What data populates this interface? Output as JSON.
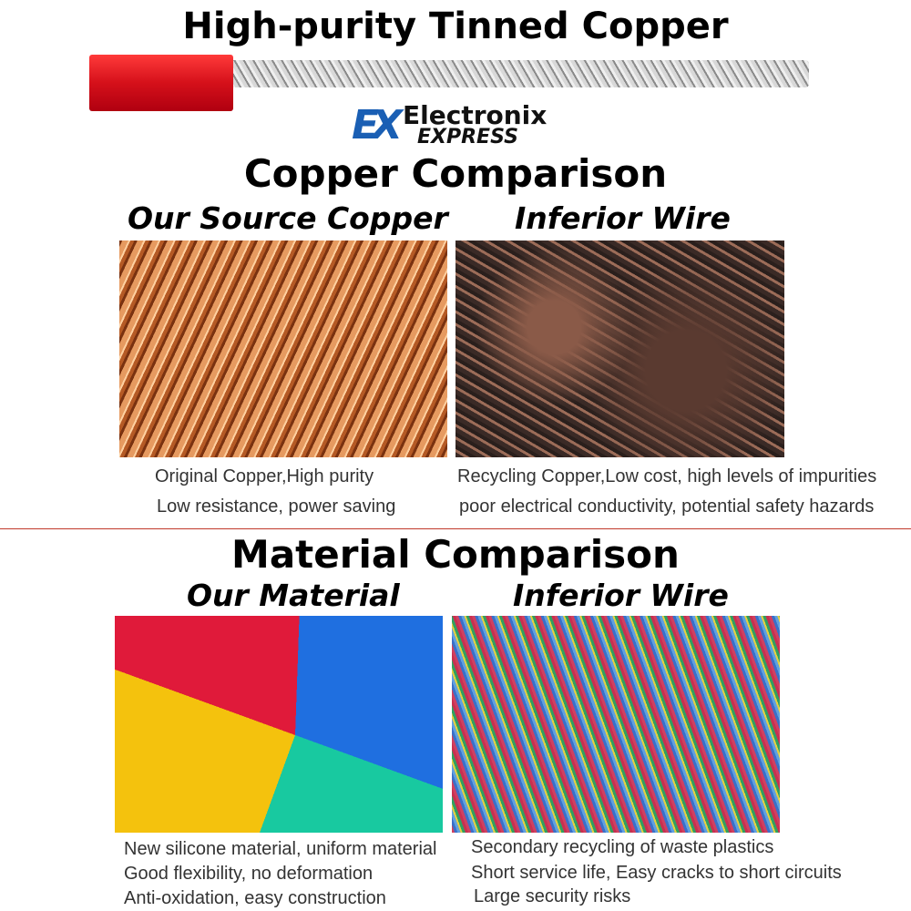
{
  "header": {
    "title": "High-purity Tinned Copper"
  },
  "logo": {
    "mark": "EX",
    "line1": "Electronix",
    "line2": "EXPRESS",
    "color": "#1a5fb4"
  },
  "copper": {
    "title": "Copper Comparison",
    "left_label": "Our Source Copper",
    "right_label": "Inferior Wire",
    "left_caption": [
      "Original Copper,High purity",
      "Low resistance, power saving"
    ],
    "right_caption": [
      "Recycling Copper,Low cost, high levels of impurities",
      "poor electrical conductivity, potential safety hazards"
    ]
  },
  "material": {
    "title": "Material Comparison",
    "left_label": "Our Material",
    "right_label": "Inferior Wire",
    "left_caption": [
      "New silicone material, uniform material",
      "Good flexibility, no deformation",
      "Anti-oxidation, easy construction"
    ],
    "right_caption": [
      "Secondary recycling of waste plastics",
      "Short service life, Easy cracks to short circuits",
      "Large security risks"
    ]
  },
  "colors": {
    "divider": "#c0392b",
    "wire_insulation": "#e0141e"
  }
}
